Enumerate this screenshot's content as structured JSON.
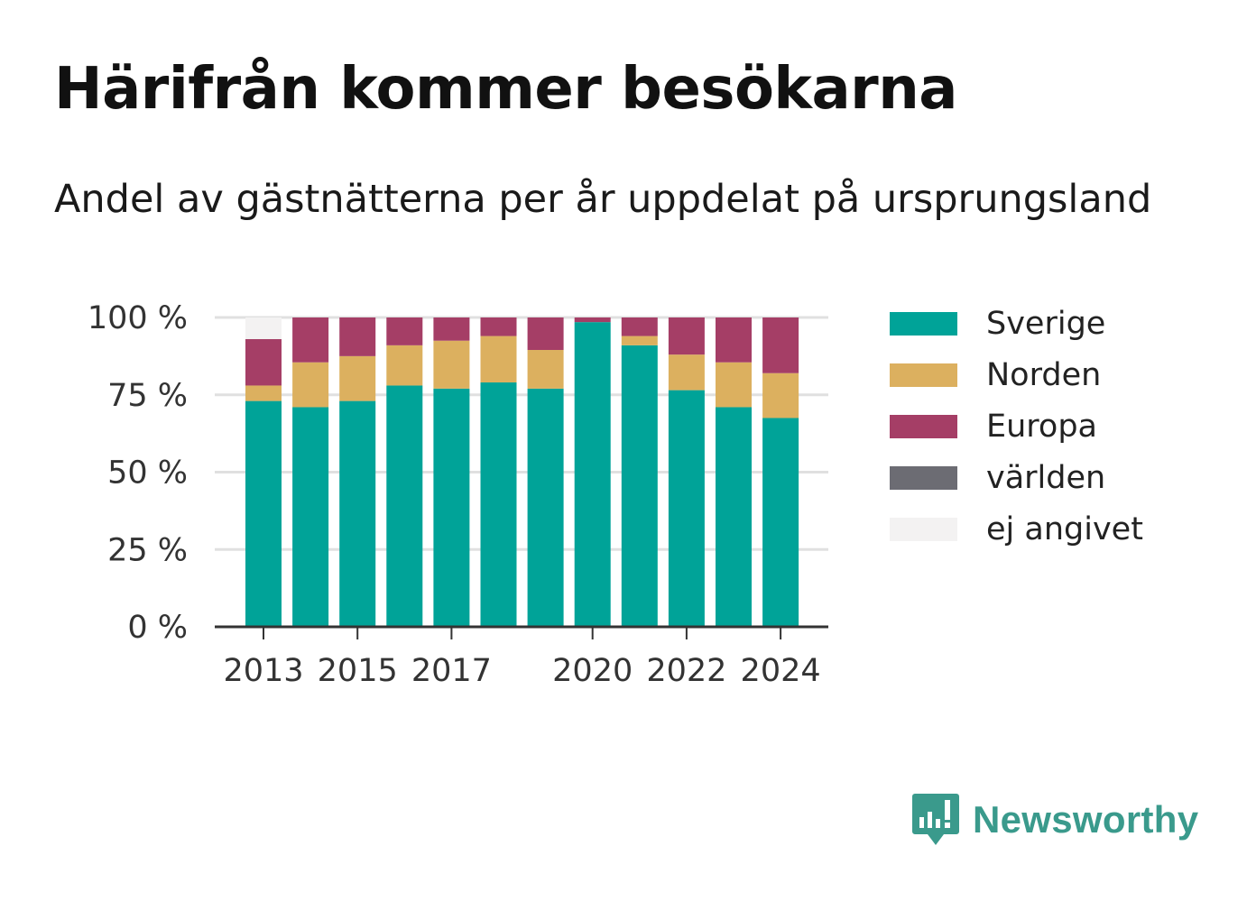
{
  "title": "Härifrån kommer besökarna",
  "subtitle": "Andel av gästnätterna per år uppdelat på ursprungsland",
  "colors": {
    "sverige": "#00a398",
    "norden": "#dcb05f",
    "europa": "#a53e66",
    "varlden": "#6c6c73",
    "ej_angivet": "#f3f2f2",
    "grid": "#e0e0e0",
    "axis": "#333333",
    "brand": "#3a9a8c"
  },
  "brand": {
    "name": "Newsworthy",
    "icon": "newsworthy-logo-icon"
  },
  "chart_data": {
    "type": "bar",
    "stacked": true,
    "x": [
      2013,
      2014,
      2015,
      2016,
      2017,
      2018,
      2019,
      2020,
      2021,
      2022,
      2023,
      2024
    ],
    "x_tick_labels": [
      "2013",
      "2015",
      "2017",
      "2020",
      "2022",
      "2024"
    ],
    "x_tick_values": [
      2013,
      2015,
      2017,
      2020,
      2022,
      2024
    ],
    "y_tick_labels": [
      "0 %",
      "25 %",
      "50 %",
      "75 %",
      "100 %"
    ],
    "y_tick_values": [
      0,
      25,
      50,
      75,
      100
    ],
    "ylim": [
      0,
      100
    ],
    "grid": true,
    "legend_position": "right",
    "series": [
      {
        "name": "Sverige",
        "color_key": "sverige",
        "values": [
          73,
          71,
          73,
          78,
          77,
          79,
          77,
          98.5,
          91,
          76.5,
          71,
          67.5
        ]
      },
      {
        "name": "Norden",
        "color_key": "norden",
        "values": [
          5,
          14.5,
          14.5,
          13,
          15.5,
          15,
          12.5,
          0,
          3,
          11.5,
          14.5,
          14.5
        ]
      },
      {
        "name": "Europa",
        "color_key": "europa",
        "values": [
          15,
          14.5,
          12.5,
          9,
          7.5,
          6,
          10.5,
          1.5,
          6,
          12,
          14.5,
          18
        ]
      },
      {
        "name": "världen",
        "color_key": "varlden",
        "values": [
          0,
          0,
          0,
          0,
          0,
          0,
          0,
          0,
          0,
          0,
          0,
          0
        ]
      },
      {
        "name": "ej angivet",
        "color_key": "ej_angivet",
        "values": [
          7,
          0,
          0,
          0,
          0,
          0,
          0,
          0,
          0,
          0,
          0,
          0
        ]
      }
    ]
  }
}
